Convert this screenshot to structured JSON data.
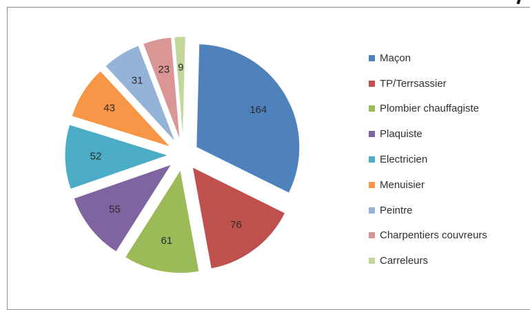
{
  "chart_data": {
    "type": "pie",
    "exploded": true,
    "legend_position": "right",
    "categories": [
      "Maçon",
      "TP/Terrsassier",
      "Plombier chauffagiste",
      "Plaquiste",
      "Electricien",
      "Menuisier",
      "Peintre",
      "Charpentiers couvreurs",
      "Carreleurs"
    ],
    "values": [
      164,
      76,
      61,
      55,
      52,
      43,
      31,
      23,
      9
    ],
    "colors": [
      "#4f81bd",
      "#c0504d",
      "#9bbb59",
      "#8064a2",
      "#4bacc6",
      "#f79646",
      "#95b3d7",
      "#d99694",
      "#c3d69b"
    ],
    "label_color": "#2b2b2b"
  }
}
